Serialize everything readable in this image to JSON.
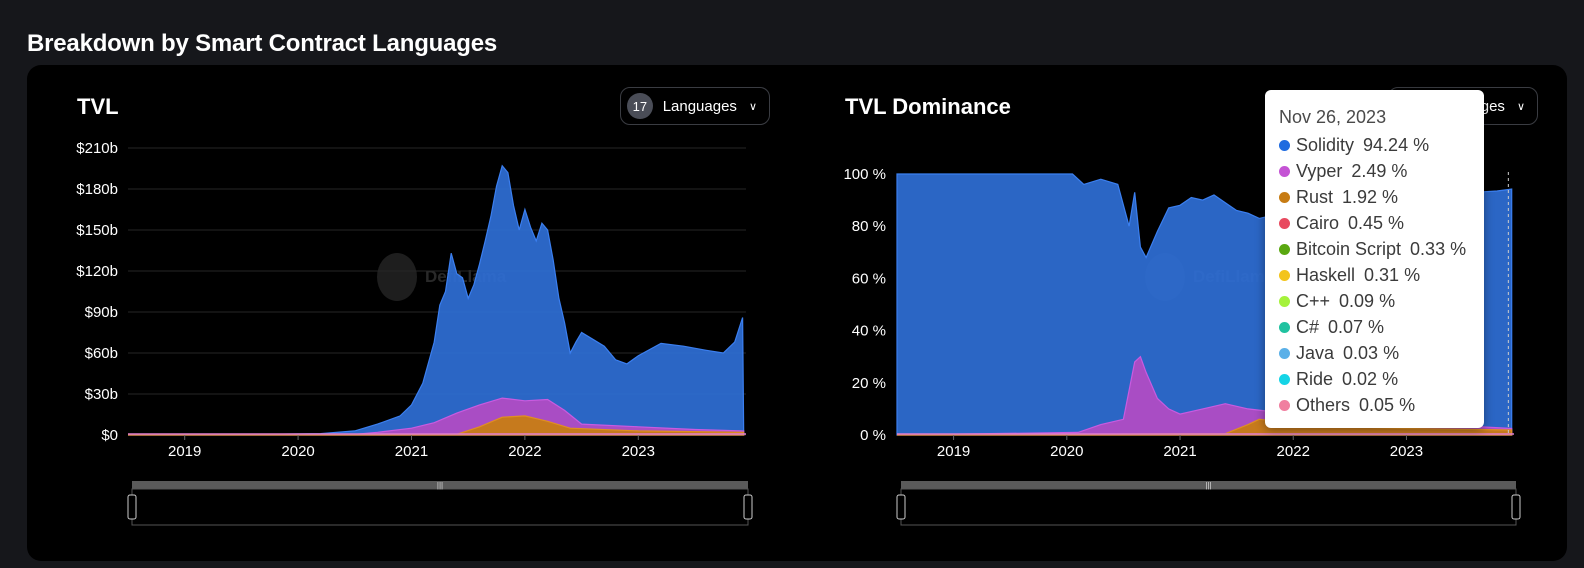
{
  "page": {
    "title": "Breakdown by Smart Contract Languages"
  },
  "left_chart": {
    "title": "TVL",
    "language_count": "17",
    "language_button_label": "Languages"
  },
  "right_chart": {
    "title": "TVL Dominance",
    "language_button_label": "ges"
  },
  "watermark": {
    "text": "DefiLlama"
  },
  "tooltip": {
    "date": "Nov 26, 2023",
    "rows": [
      {
        "name": "Solidity",
        "value": "94.24 %",
        "color": "#1f6be0"
      },
      {
        "name": "Vyper",
        "value": "2.49 %",
        "color": "#c453d4"
      },
      {
        "name": "Rust",
        "value": "1.92 %",
        "color": "#c77c14"
      },
      {
        "name": "Cairo",
        "value": "0.45 %",
        "color": "#e84a5f"
      },
      {
        "name": "Bitcoin Script",
        "value": "0.33 %",
        "color": "#5aa811"
      },
      {
        "name": "Haskell",
        "value": "0.31 %",
        "color": "#f3c41b"
      },
      {
        "name": "C++",
        "value": "0.09 %",
        "color": "#a5f23b"
      },
      {
        "name": "C#",
        "value": "0.07 %",
        "color": "#20c2a0"
      },
      {
        "name": "Java",
        "value": "0.03 %",
        "color": "#5ab0e8"
      },
      {
        "name": "Ride",
        "value": "0.02 %",
        "color": "#15d4e6"
      },
      {
        "name": "Others",
        "value": "0.05 %",
        "color": "#f07fa0"
      }
    ]
  },
  "colors": {
    "solidity": "#2f6fd6",
    "vyper": "#b04cc4",
    "rust": "#c77c14",
    "teal": "#20c2a0"
  },
  "chart_data": [
    {
      "type": "area",
      "title": "TVL",
      "x_ticks": [
        "2019",
        "2020",
        "2021",
        "2022",
        "2023"
      ],
      "y_ticks": [
        "$0",
        "$30b",
        "$60b",
        "$90b",
        "$120b",
        "$150b",
        "$180b",
        "$210b"
      ],
      "ylim": [
        0,
        210
      ],
      "grid": true,
      "series": [
        {
          "name": "Solidity",
          "points": [
            [
              2018.5,
              0
            ],
            [
              2019.5,
              0.3
            ],
            [
              2020.2,
              1
            ],
            [
              2020.5,
              3
            ],
            [
              2020.7,
              8
            ],
            [
              2020.9,
              14
            ],
            [
              2021.0,
              22
            ],
            [
              2021.1,
              38
            ],
            [
              2021.2,
              68
            ],
            [
              2021.25,
              95
            ],
            [
              2021.3,
              105
            ],
            [
              2021.35,
              133
            ],
            [
              2021.4,
              118
            ],
            [
              2021.45,
              115
            ],
            [
              2021.5,
              100
            ],
            [
              2021.55,
              110
            ],
            [
              2021.6,
              125
            ],
            [
              2021.65,
              142
            ],
            [
              2021.7,
              160
            ],
            [
              2021.75,
              182
            ],
            [
              2021.8,
              197
            ],
            [
              2021.85,
              192
            ],
            [
              2021.9,
              168
            ],
            [
              2021.95,
              150
            ],
            [
              2022.0,
              165
            ],
            [
              2022.05,
              152
            ],
            [
              2022.1,
              142
            ],
            [
              2022.15,
              155
            ],
            [
              2022.2,
              150
            ],
            [
              2022.25,
              128
            ],
            [
              2022.3,
              100
            ],
            [
              2022.35,
              82
            ],
            [
              2022.4,
              60
            ],
            [
              2022.45,
              68
            ],
            [
              2022.5,
              75
            ],
            [
              2022.6,
              70
            ],
            [
              2022.7,
              65
            ],
            [
              2022.8,
              55
            ],
            [
              2022.9,
              52
            ],
            [
              2023.0,
              58
            ],
            [
              2023.2,
              67
            ],
            [
              2023.4,
              65
            ],
            [
              2023.6,
              62
            ],
            [
              2023.75,
              60
            ],
            [
              2023.85,
              68
            ],
            [
              2023.92,
              86
            ],
            [
              2023.93,
              0
            ]
          ]
        },
        {
          "name": "Vyper",
          "points": [
            [
              2018.5,
              0
            ],
            [
              2020.5,
              0.5
            ],
            [
              2020.7,
              2
            ],
            [
              2021.0,
              5
            ],
            [
              2021.2,
              9
            ],
            [
              2021.4,
              16
            ],
            [
              2021.6,
              22
            ],
            [
              2021.8,
              27
            ],
            [
              2022.0,
              25
            ],
            [
              2022.2,
              26
            ],
            [
              2022.35,
              18
            ],
            [
              2022.5,
              8
            ],
            [
              2023.0,
              6
            ],
            [
              2023.5,
              4
            ],
            [
              2023.93,
              3
            ]
          ]
        },
        {
          "name": "Rust",
          "points": [
            [
              2018.5,
              0
            ],
            [
              2021.4,
              0.5
            ],
            [
              2021.6,
              6
            ],
            [
              2021.8,
              13
            ],
            [
              2022.0,
              14
            ],
            [
              2022.2,
              10
            ],
            [
              2022.4,
              5
            ],
            [
              2023.0,
              3
            ],
            [
              2023.93,
              2
            ]
          ]
        }
      ]
    },
    {
      "type": "area",
      "title": "TVL Dominance",
      "x_ticks": [
        "2019",
        "2020",
        "2021",
        "2022",
        "2023"
      ],
      "y_ticks": [
        "0 %",
        "20 %",
        "40 %",
        "60 %",
        "80 %",
        "100 %"
      ],
      "ylim": [
        0,
        100
      ],
      "grid": false,
      "series": [
        {
          "name": "Solidity",
          "points": [
            [
              2018.5,
              100
            ],
            [
              2020.05,
              100
            ],
            [
              2020.15,
              96
            ],
            [
              2020.3,
              98
            ],
            [
              2020.45,
              96
            ],
            [
              2020.55,
              80
            ],
            [
              2020.6,
              93
            ],
            [
              2020.65,
              72
            ],
            [
              2020.7,
              68
            ],
            [
              2020.8,
              78
            ],
            [
              2020.9,
              87
            ],
            [
              2021.0,
              88
            ],
            [
              2021.1,
              91
            ],
            [
              2021.2,
              90
            ],
            [
              2021.3,
              92
            ],
            [
              2021.4,
              89
            ],
            [
              2021.5,
              86
            ],
            [
              2021.6,
              85
            ],
            [
              2021.7,
              83
            ],
            [
              2021.8,
              84
            ],
            [
              2021.9,
              85
            ],
            [
              2022.0,
              84
            ],
            [
              2022.2,
              86
            ],
            [
              2022.5,
              88
            ],
            [
              2022.8,
              89
            ],
            [
              2023.0,
              91
            ],
            [
              2023.3,
              92
            ],
            [
              2023.6,
              93
            ],
            [
              2023.8,
              93.5
            ],
            [
              2023.93,
              94.2
            ]
          ]
        },
        {
          "name": "Vyper",
          "points": [
            [
              2018.5,
              0
            ],
            [
              2020.1,
              1
            ],
            [
              2020.3,
              4
            ],
            [
              2020.5,
              6
            ],
            [
              2020.6,
              28
            ],
            [
              2020.65,
              30
            ],
            [
              2020.7,
              24
            ],
            [
              2020.8,
              14
            ],
            [
              2020.9,
              10
            ],
            [
              2021.0,
              8
            ],
            [
              2021.2,
              10
            ],
            [
              2021.4,
              12
            ],
            [
              2021.6,
              10
            ],
            [
              2021.8,
              9
            ],
            [
              2022.0,
              8
            ],
            [
              2022.3,
              7
            ],
            [
              2022.6,
              6
            ],
            [
              2022.9,
              5
            ],
            [
              2023.2,
              4
            ],
            [
              2023.5,
              3.5
            ],
            [
              2023.93,
              2.5
            ]
          ]
        },
        {
          "name": "Rust",
          "points": [
            [
              2018.5,
              0
            ],
            [
              2021.4,
              0.5
            ],
            [
              2021.6,
              4
            ],
            [
              2021.7,
              6
            ],
            [
              2021.9,
              5
            ],
            [
              2022.2,
              4
            ],
            [
              2022.6,
              3
            ],
            [
              2023.0,
              2.5
            ],
            [
              2023.93,
              1.9
            ]
          ]
        }
      ]
    }
  ]
}
